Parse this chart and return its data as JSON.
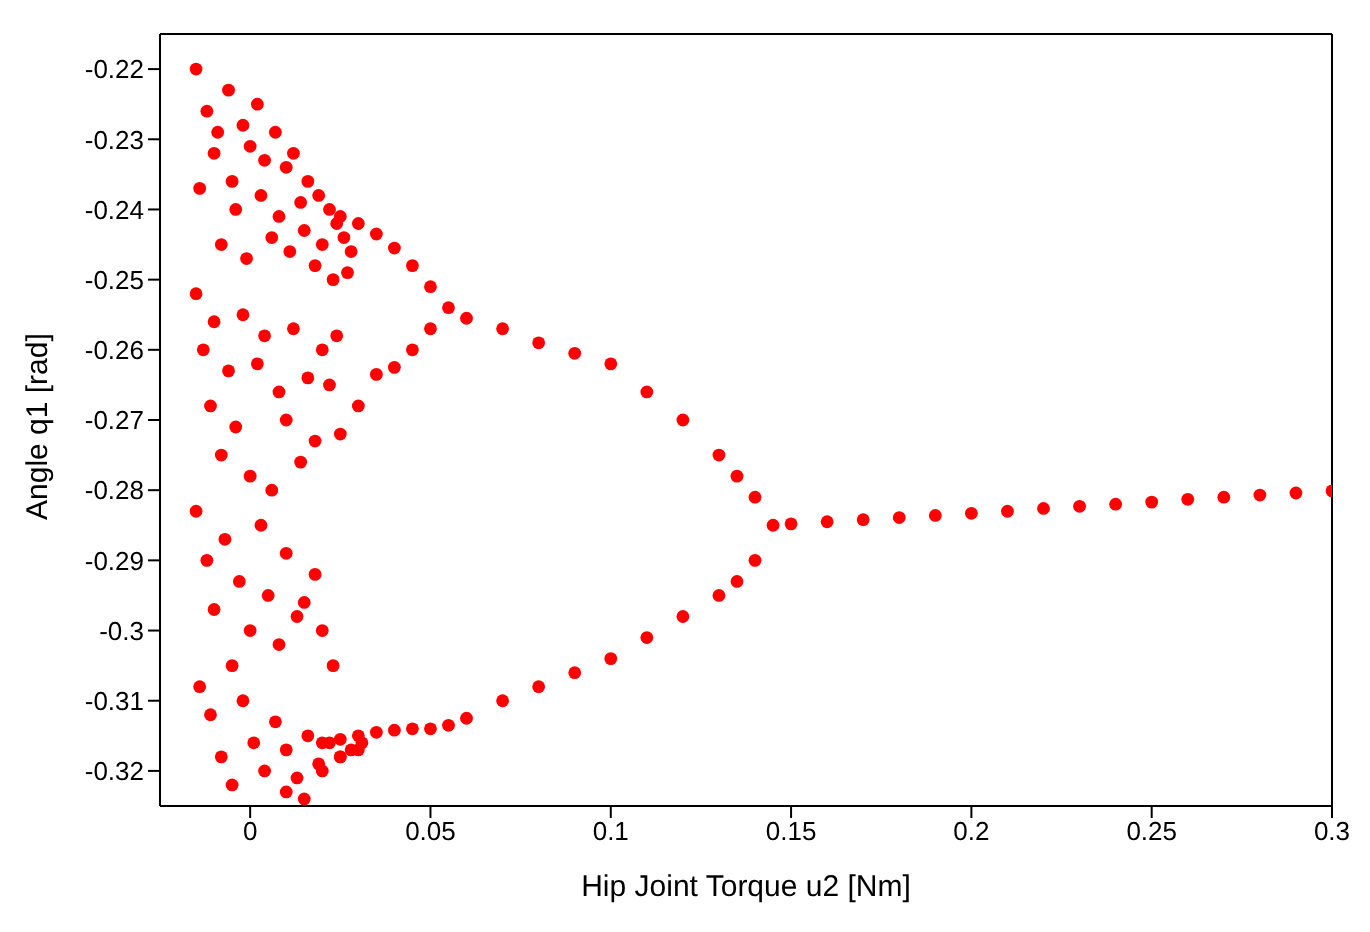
{
  "chart_data": {
    "type": "scatter",
    "xlabel": "Hip Joint Torque u2 [Nm]",
    "ylabel": "Angle q1 [rad]",
    "xlim": [
      -0.025,
      0.3
    ],
    "ylim": [
      -0.325,
      -0.215
    ],
    "xticks": [
      0,
      0.05,
      0.1,
      0.15,
      0.2,
      0.25,
      0.3
    ],
    "yticks": [
      -0.22,
      -0.23,
      -0.24,
      -0.25,
      -0.26,
      -0.27,
      -0.28,
      -0.29,
      -0.3,
      -0.31,
      -0.32
    ],
    "grid": false,
    "legend": false,
    "marker": "circle",
    "series": [
      {
        "color": "#ff0000",
        "x": [
          0.145,
          0.15,
          0.16,
          0.17,
          0.18,
          0.19,
          0.2,
          0.21,
          0.22,
          0.23,
          0.24,
          0.25,
          0.26,
          0.27,
          0.28,
          0.29,
          0.3,
          0.14,
          0.135,
          0.13,
          0.12,
          0.11,
          0.1,
          0.09,
          0.08,
          0.07,
          0.06,
          0.055,
          0.14,
          0.135,
          0.13,
          0.12,
          0.11,
          0.1,
          0.09,
          0.08,
          0.07,
          0.06,
          0.055,
          0.05,
          0.045,
          0.04,
          0.035,
          0.03,
          0.025,
          0.02,
          0.05,
          0.045,
          0.04,
          0.035,
          0.03,
          0.025,
          0.05,
          0.045,
          0.04,
          0.035,
          0.03,
          0.025,
          -0.015,
          -0.014,
          -0.012,
          -0.01,
          -0.009,
          -0.008,
          -0.006,
          -0.005,
          -0.004,
          -0.002,
          -0.001,
          0.0,
          0.002,
          0.003,
          0.004,
          0.006,
          0.007,
          0.008,
          0.01,
          0.011,
          0.012,
          0.014,
          0.015,
          0.016,
          0.018,
          0.019,
          0.02,
          0.022,
          0.023,
          0.024,
          0.026,
          0.027,
          0.028,
          -0.015,
          -0.013,
          -0.011,
          -0.01,
          -0.008,
          -0.006,
          -0.004,
          -0.002,
          0.0,
          0.002,
          0.004,
          0.006,
          0.008,
          0.01,
          0.012,
          0.014,
          0.016,
          0.018,
          0.02,
          0.022,
          0.024,
          -0.015,
          -0.012,
          -0.01,
          -0.007,
          -0.005,
          -0.003,
          0.0,
          0.003,
          0.005,
          0.008,
          0.01,
          0.013,
          0.015,
          0.018,
          0.02,
          0.023,
          -0.014,
          -0.011,
          -0.008,
          -0.005,
          -0.002,
          0.001,
          0.004,
          0.007,
          0.01,
          0.013,
          0.016,
          0.019,
          0.022,
          0.025,
          0.028,
          0.031,
          0.01,
          0.015,
          0.02,
          0.025,
          0.03
        ],
        "values": [
          -0.285,
          -0.2848,
          -0.2845,
          -0.2842,
          -0.2839,
          -0.2836,
          -0.2833,
          -0.283,
          -0.2826,
          -0.2823,
          -0.282,
          -0.2817,
          -0.2813,
          -0.281,
          -0.2807,
          -0.2804,
          -0.2801,
          -0.281,
          -0.278,
          -0.275,
          -0.27,
          -0.266,
          -0.262,
          -0.2605,
          -0.259,
          -0.257,
          -0.2555,
          -0.254,
          -0.29,
          -0.293,
          -0.295,
          -0.298,
          -0.301,
          -0.304,
          -0.306,
          -0.308,
          -0.31,
          -0.3125,
          -0.3135,
          -0.314,
          -0.314,
          -0.3142,
          -0.3145,
          -0.315,
          -0.3155,
          -0.316,
          -0.251,
          -0.248,
          -0.2455,
          -0.2435,
          -0.242,
          -0.241,
          -0.257,
          -0.26,
          -0.2625,
          -0.2635,
          -0.268,
          -0.272,
          -0.22,
          -0.237,
          -0.226,
          -0.232,
          -0.229,
          -0.245,
          -0.223,
          -0.236,
          -0.24,
          -0.228,
          -0.247,
          -0.231,
          -0.225,
          -0.238,
          -0.233,
          -0.244,
          -0.229,
          -0.241,
          -0.234,
          -0.246,
          -0.232,
          -0.239,
          -0.243,
          -0.236,
          -0.248,
          -0.238,
          -0.245,
          -0.24,
          -0.25,
          -0.242,
          -0.244,
          -0.249,
          -0.246,
          -0.252,
          -0.26,
          -0.268,
          -0.256,
          -0.275,
          -0.263,
          -0.271,
          -0.255,
          -0.278,
          -0.262,
          -0.258,
          -0.28,
          -0.266,
          -0.27,
          -0.257,
          -0.276,
          -0.264,
          -0.273,
          -0.26,
          -0.265,
          -0.258,
          -0.283,
          -0.29,
          -0.297,
          -0.287,
          -0.305,
          -0.293,
          -0.3,
          -0.285,
          -0.295,
          -0.302,
          -0.289,
          -0.298,
          -0.296,
          -0.292,
          -0.3,
          -0.305,
          -0.308,
          -0.312,
          -0.318,
          -0.322,
          -0.31,
          -0.316,
          -0.32,
          -0.313,
          -0.317,
          -0.321,
          -0.315,
          -0.319,
          -0.316,
          -0.318,
          -0.317,
          -0.316,
          -0.323,
          -0.324,
          -0.32,
          -0.318,
          -0.317
        ]
      }
    ]
  }
}
